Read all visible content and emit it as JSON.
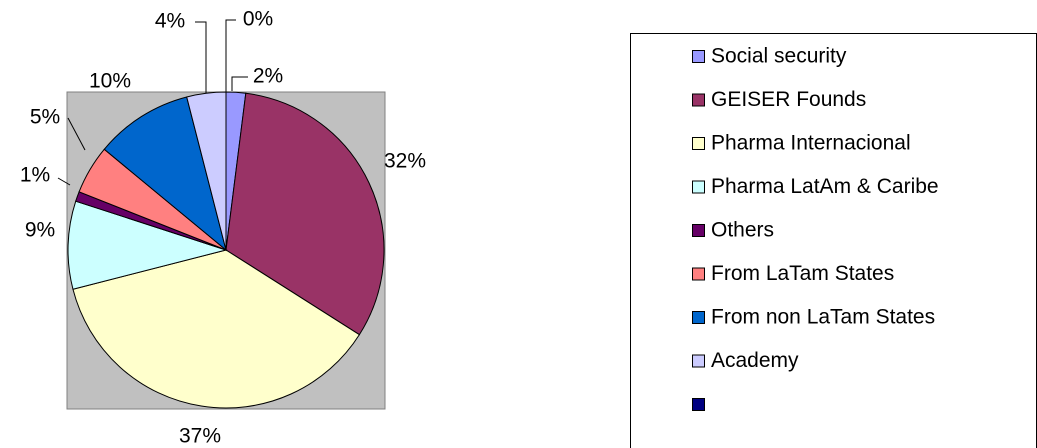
{
  "chart_data": {
    "type": "pie",
    "categories": [
      "Social security",
      "GEISER  Founds",
      "Pharma Internacional",
      "Pharma LatAm & Caribe",
      "Others",
      "From LaTam  States",
      "From non LaTam States",
      "Academy",
      null
    ],
    "values": [
      2,
      32,
      37,
      9,
      1,
      5,
      10,
      4,
      0
    ],
    "value_labels": [
      "2%",
      "32%",
      "37%",
      "9%",
      "1%",
      "5%",
      "10%",
      "4%",
      "0%"
    ],
    "colors": [
      "#9999ff",
      "#993366",
      "#ffffcc",
      "#ccffff",
      "#660066",
      "#ff8080",
      "#0066cc",
      "#ccccff",
      "#000080"
    ],
    "legend": "right"
  }
}
